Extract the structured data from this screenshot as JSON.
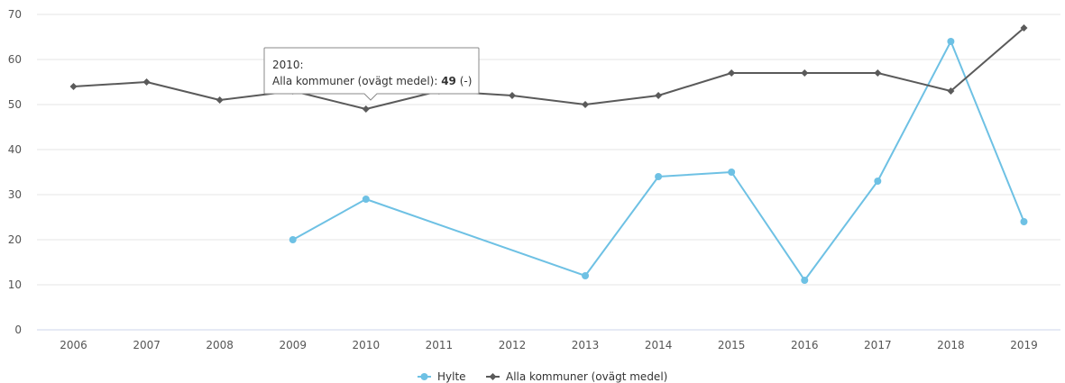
{
  "chart_data": {
    "type": "line",
    "title": "",
    "xlabel": "",
    "ylabel": "",
    "categories": [
      "2006",
      "2007",
      "2008",
      "2009",
      "2010",
      "2011",
      "2012",
      "2013",
      "2014",
      "2015",
      "2016",
      "2017",
      "2018",
      "2019"
    ],
    "ylim": [
      0,
      70
    ],
    "yticks": [
      0,
      10,
      20,
      30,
      40,
      50,
      60,
      70
    ],
    "grid": true,
    "legend_position": "bottom-center",
    "series": [
      {
        "name": "Hylte",
        "color": "#6ec1e4",
        "marker": "circle",
        "values": [
          null,
          null,
          null,
          20,
          29,
          null,
          null,
          12,
          34,
          35,
          11,
          33,
          64,
          24
        ]
      },
      {
        "name": "Alla kommuner (ovägt medel)",
        "color": "#5a5a5a",
        "marker": "diamond",
        "values": [
          54,
          55,
          51,
          53,
          49,
          53,
          52,
          50,
          52,
          57,
          57,
          57,
          53,
          67
        ]
      }
    ]
  },
  "tooltip": {
    "title": "2010:",
    "series_label": "Alla kommuner (ovägt medel): ",
    "value": "49",
    "suffix": " (-)"
  }
}
